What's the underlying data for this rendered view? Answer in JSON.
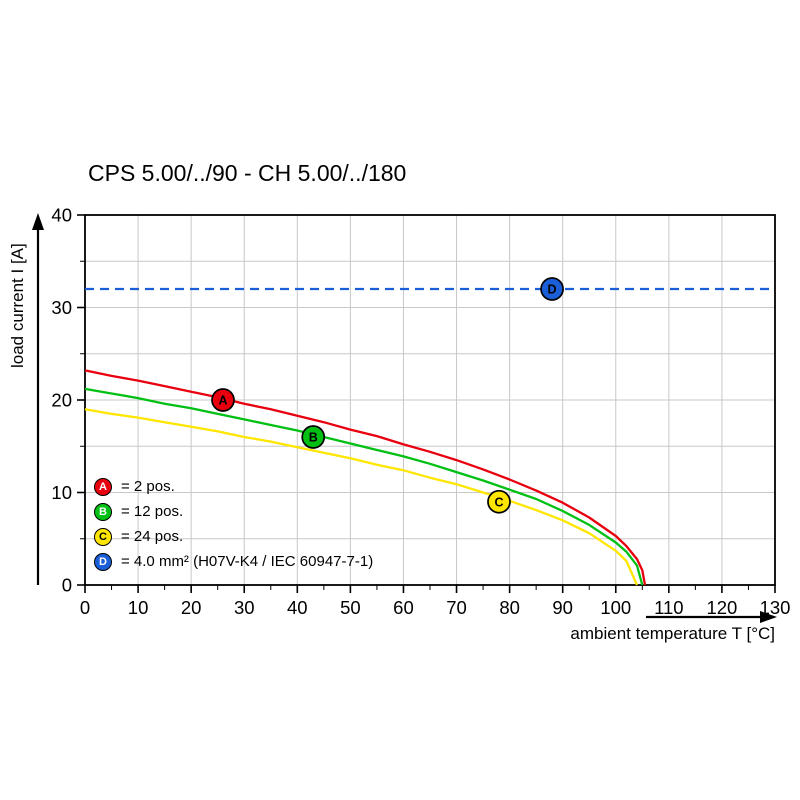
{
  "chart": {
    "title": "CPS 5.00/../90 - CH 5.00/../180",
    "x_axis_label": "ambient temperature T [°C]",
    "y_axis_label": "load current I [A]"
  },
  "legend": {
    "items": [
      {
        "letter": "A",
        "label": "= 2 pos.",
        "color": "#e8000f",
        "text_color": "#ffffff"
      },
      {
        "letter": "B",
        "label": "= 12 pos.",
        "color": "#00c013",
        "text_color": "#ffffff"
      },
      {
        "letter": "C",
        "label": "= 24 pos.",
        "color": "#ffe600",
        "text_color": "#000000"
      },
      {
        "letter": "D",
        "label": "= 4.0 mm² (H07V-K4 / IEC 60947-7-1)",
        "color": "#1b5fd8",
        "text_color": "#ffffff"
      }
    ]
  },
  "chart_data": {
    "type": "line",
    "title": "CPS 5.00/../90 - CH 5.00/../180",
    "xlabel": "ambient temperature T [°C]",
    "ylabel": "load current I [A]",
    "xlim": [
      0,
      130
    ],
    "ylim": [
      0,
      40
    ],
    "x_ticks": [
      0,
      10,
      20,
      30,
      40,
      50,
      60,
      70,
      80,
      90,
      100,
      110,
      120,
      130
    ],
    "y_ticks": [
      0,
      10,
      20,
      30,
      40
    ],
    "grid": {
      "on": true,
      "x_step": 10,
      "y_step": 5,
      "color": "#c8c8c8"
    },
    "legend_position": "inside bottom-left",
    "series": [
      {
        "name": "A",
        "label": "= 2 pos.",
        "color": "#e8000f",
        "style": "solid",
        "points": [
          [
            0,
            23.2
          ],
          [
            5,
            22.6
          ],
          [
            10,
            22.1
          ],
          [
            15,
            21.5
          ],
          [
            20,
            20.9
          ],
          [
            25,
            20.3
          ],
          [
            30,
            19.6
          ],
          [
            35,
            19.0
          ],
          [
            40,
            18.3
          ],
          [
            45,
            17.6
          ],
          [
            50,
            16.8
          ],
          [
            55,
            16.1
          ],
          [
            60,
            15.2
          ],
          [
            65,
            14.4
          ],
          [
            70,
            13.5
          ],
          [
            75,
            12.5
          ],
          [
            80,
            11.4
          ],
          [
            85,
            10.2
          ],
          [
            90,
            8.9
          ],
          [
            95,
            7.3
          ],
          [
            100,
            5.3
          ],
          [
            102,
            4.2
          ],
          [
            104,
            2.8
          ],
          [
            105,
            1.6
          ],
          [
            105.5,
            0
          ]
        ]
      },
      {
        "name": "B",
        "label": "= 12 pos.",
        "color": "#00c013",
        "style": "solid",
        "points": [
          [
            0,
            21.2
          ],
          [
            5,
            20.7
          ],
          [
            10,
            20.2
          ],
          [
            15,
            19.6
          ],
          [
            20,
            19.1
          ],
          [
            25,
            18.5
          ],
          [
            30,
            17.9
          ],
          [
            35,
            17.3
          ],
          [
            40,
            16.7
          ],
          [
            45,
            16.0
          ],
          [
            50,
            15.3
          ],
          [
            55,
            14.6
          ],
          [
            60,
            13.9
          ],
          [
            65,
            13.1
          ],
          [
            70,
            12.2
          ],
          [
            75,
            11.3
          ],
          [
            80,
            10.3
          ],
          [
            85,
            9.3
          ],
          [
            90,
            8.0
          ],
          [
            95,
            6.5
          ],
          [
            100,
            4.6
          ],
          [
            102,
            3.6
          ],
          [
            104,
            2.1
          ],
          [
            105,
            0
          ]
        ]
      },
      {
        "name": "C",
        "label": "= 24 pos.",
        "color": "#ffe600",
        "style": "solid",
        "points": [
          [
            0,
            19.0
          ],
          [
            5,
            18.5
          ],
          [
            10,
            18.1
          ],
          [
            15,
            17.6
          ],
          [
            20,
            17.1
          ],
          [
            25,
            16.6
          ],
          [
            30,
            16.0
          ],
          [
            35,
            15.5
          ],
          [
            40,
            14.9
          ],
          [
            45,
            14.3
          ],
          [
            50,
            13.7
          ],
          [
            55,
            13.0
          ],
          [
            60,
            12.4
          ],
          [
            65,
            11.6
          ],
          [
            70,
            10.9
          ],
          [
            75,
            10.0
          ],
          [
            80,
            9.1
          ],
          [
            85,
            8.1
          ],
          [
            90,
            7.0
          ],
          [
            95,
            5.6
          ],
          [
            100,
            3.7
          ],
          [
            102,
            2.6
          ],
          [
            104,
            0
          ]
        ]
      },
      {
        "name": "D",
        "label": "= 4.0 mm² (H07V-K4 / IEC 60947-7-1)",
        "color": "#1b5fd8",
        "style": "dashed",
        "points": [
          [
            0,
            32
          ],
          [
            130,
            32
          ]
        ]
      }
    ],
    "markers": [
      {
        "letter": "A",
        "x": 26,
        "y": 20,
        "color": "#e8000f",
        "text_color": "#ffffff"
      },
      {
        "letter": "B",
        "x": 43,
        "y": 16,
        "color": "#00c013",
        "text_color": "#ffffff"
      },
      {
        "letter": "C",
        "x": 78,
        "y": 9,
        "color": "#ffe600",
        "text_color": "#000000"
      },
      {
        "letter": "D",
        "x": 88,
        "y": 32,
        "color": "#1b5fd8",
        "text_color": "#ffffff"
      }
    ]
  }
}
